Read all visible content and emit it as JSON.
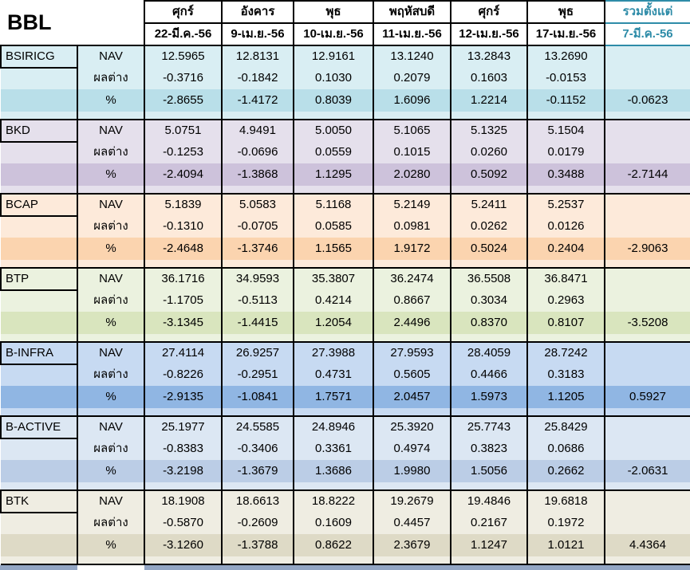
{
  "title": "BBL",
  "accent_teal": "#2E8CA8",
  "row_labels": {
    "nav": "NAV",
    "diff": "ผลต่าง",
    "pct": "%"
  },
  "columns": [
    {
      "day": "ศุกร์",
      "date": "22-มี.ค.-56"
    },
    {
      "day": "อังคาร",
      "date": "9-เม.ย.-56"
    },
    {
      "day": "พุธ",
      "date": "10-เม.ย.-56"
    },
    {
      "day": "พฤหัสบดี",
      "date": "11-เม.ย.-56"
    },
    {
      "day": "ศุกร์",
      "date": "12-เม.ย.-56"
    },
    {
      "day": "พุธ",
      "date": "17-เม.ย.-56"
    }
  ],
  "total_column": {
    "day": "รวมตั้งแต่",
    "date": "7-มี.ค.-56"
  },
  "funds": [
    {
      "name": "BSIRICG",
      "light": "#D9EEF3",
      "dark": "#B9DFE9",
      "nav": [
        "12.5965",
        "12.8131",
        "12.9161",
        "13.1240",
        "13.2843",
        "13.2690"
      ],
      "diff": [
        "-0.3716",
        "-0.1842",
        "0.1030",
        "0.2079",
        "0.1603",
        "-0.0153"
      ],
      "pct": [
        "-2.8655",
        "-1.4172",
        "0.8039",
        "1.6096",
        "1.2214",
        "-0.1152"
      ],
      "total": "-0.0623"
    },
    {
      "name": "BKD",
      "light": "#E5E0EC",
      "dark": "#CDC2DB",
      "nav": [
        "5.0751",
        "4.9491",
        "5.0050",
        "5.1065",
        "5.1325",
        "5.1504"
      ],
      "diff": [
        "-0.1253",
        "-0.0696",
        "0.0559",
        "0.1015",
        "0.0260",
        "0.0179"
      ],
      "pct": [
        "-2.4094",
        "-1.3868",
        "1.1295",
        "2.0280",
        "0.5092",
        "0.3488"
      ],
      "total": "-2.7144"
    },
    {
      "name": "BCAP",
      "light": "#FDEADA",
      "dark": "#FBD4AF",
      "nav": [
        "5.1839",
        "5.0583",
        "5.1168",
        "5.2149",
        "5.2411",
        "5.2537"
      ],
      "diff": [
        "-0.1310",
        "-0.0705",
        "0.0585",
        "0.0981",
        "0.0262",
        "0.0126"
      ],
      "pct": [
        "-2.4648",
        "-1.3746",
        "1.1565",
        "1.9172",
        "0.5024",
        "0.2404"
      ],
      "total": "-2.9063"
    },
    {
      "name": "BTP",
      "light": "#EBF2DF",
      "dark": "#D9E5BE",
      "nav": [
        "36.1716",
        "34.9593",
        "35.3807",
        "36.2474",
        "36.5508",
        "36.8471"
      ],
      "diff": [
        "-1.1705",
        "-0.5113",
        "0.4214",
        "0.8667",
        "0.3034",
        "0.2963"
      ],
      "pct": [
        "-3.1345",
        "-1.4415",
        "1.2054",
        "2.4496",
        "0.8370",
        "0.8107"
      ],
      "total": "-3.5208"
    },
    {
      "name": "B-INFRA",
      "light": "#C7DAF2",
      "dark": "#90B6E3",
      "nav": [
        "27.4114",
        "26.9257",
        "27.3988",
        "27.9593",
        "28.4059",
        "28.7242"
      ],
      "diff": [
        "-0.8226",
        "-0.2951",
        "0.4731",
        "0.5605",
        "0.4466",
        "0.3183"
      ],
      "pct": [
        "-2.9135",
        "-1.0841",
        "1.7571",
        "2.0457",
        "1.5973",
        "1.1205"
      ],
      "total": "0.5927"
    },
    {
      "name": "B-ACTIVE",
      "light": "#DCE7F3",
      "dark": "#BBCDE6",
      "nav": [
        "25.1977",
        "24.5585",
        "24.8946",
        "25.3920",
        "25.7743",
        "25.8429"
      ],
      "diff": [
        "-0.8383",
        "-0.3406",
        "0.3361",
        "0.4974",
        "0.3823",
        "0.0686"
      ],
      "pct": [
        "-3.2198",
        "-1.3679",
        "1.3686",
        "1.9980",
        "1.5056",
        "0.2662"
      ],
      "total": "-2.0631"
    },
    {
      "name": "BTK",
      "light": "#EFEDE2",
      "dark": "#DEDAC6",
      "nav": [
        "18.1908",
        "18.6613",
        "18.8222",
        "19.2679",
        "19.4846",
        "19.6818"
      ],
      "diff": [
        "-0.5870",
        "-0.2609",
        "0.1609",
        "0.4457",
        "0.2167",
        "0.1972"
      ],
      "pct": [
        "-3.1260",
        "-1.3788",
        "0.8622",
        "2.3679",
        "1.1247",
        "1.0121"
      ],
      "total": "4.4364"
    }
  ]
}
